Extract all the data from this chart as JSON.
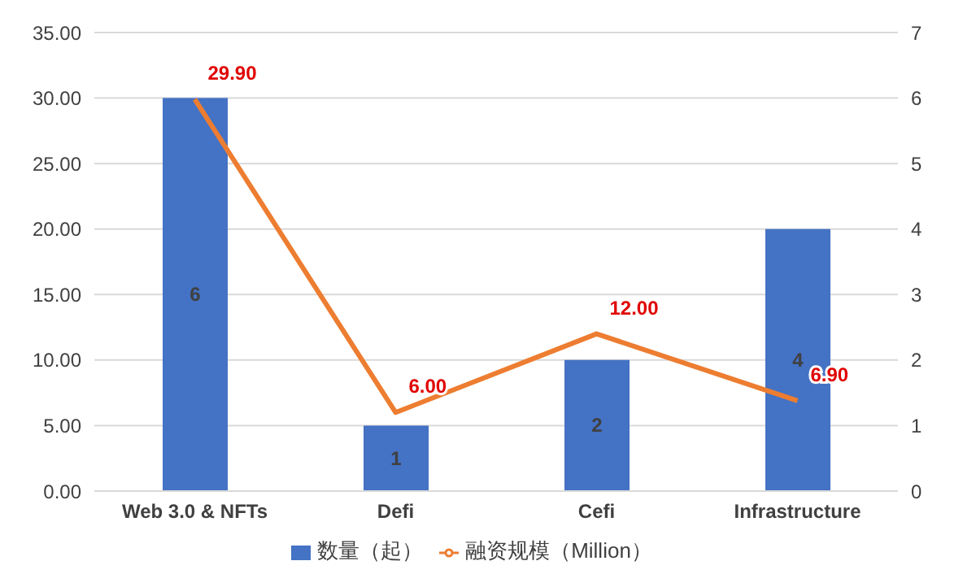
{
  "chart_data": {
    "type": "bar",
    "categories": [
      "Web 3.0 &  NFTs",
      "Defi",
      "Cefi",
      "Infrastructure"
    ],
    "series": [
      {
        "name": "数量（起）",
        "axis": "y2",
        "color": "#4472c4",
        "values": [
          6,
          1,
          2,
          4
        ],
        "value_labels": [
          "6",
          "1",
          "2",
          "4"
        ]
      },
      {
        "name": "融资规模（Million）",
        "type": "line",
        "axis": "y",
        "color": "#ed7d31",
        "values": [
          29.9,
          6,
          12,
          6.9
        ],
        "value_labels": [
          "29.90",
          "6.00",
          "12.00",
          "6.90"
        ]
      }
    ],
    "ylim": [
      0,
      35
    ],
    "yticks": [
      {
        "value": 0,
        "label": "0.00"
      },
      {
        "value": 5,
        "label": "5.00"
      },
      {
        "value": 10,
        "label": "10.00"
      },
      {
        "value": 15,
        "label": "15.00"
      },
      {
        "value": 20,
        "label": "20.00"
      },
      {
        "value": 25,
        "label": "25.00"
      },
      {
        "value": 30,
        "label": "30.00"
      },
      {
        "value": 35,
        "label": "35.00"
      }
    ],
    "y2lim": [
      0,
      7
    ],
    "y2ticks": [
      0,
      1,
      2,
      3,
      4,
      5,
      6,
      7
    ],
    "grid": "y",
    "legend": "bottom",
    "marker": "none",
    "line_style": "solid"
  }
}
